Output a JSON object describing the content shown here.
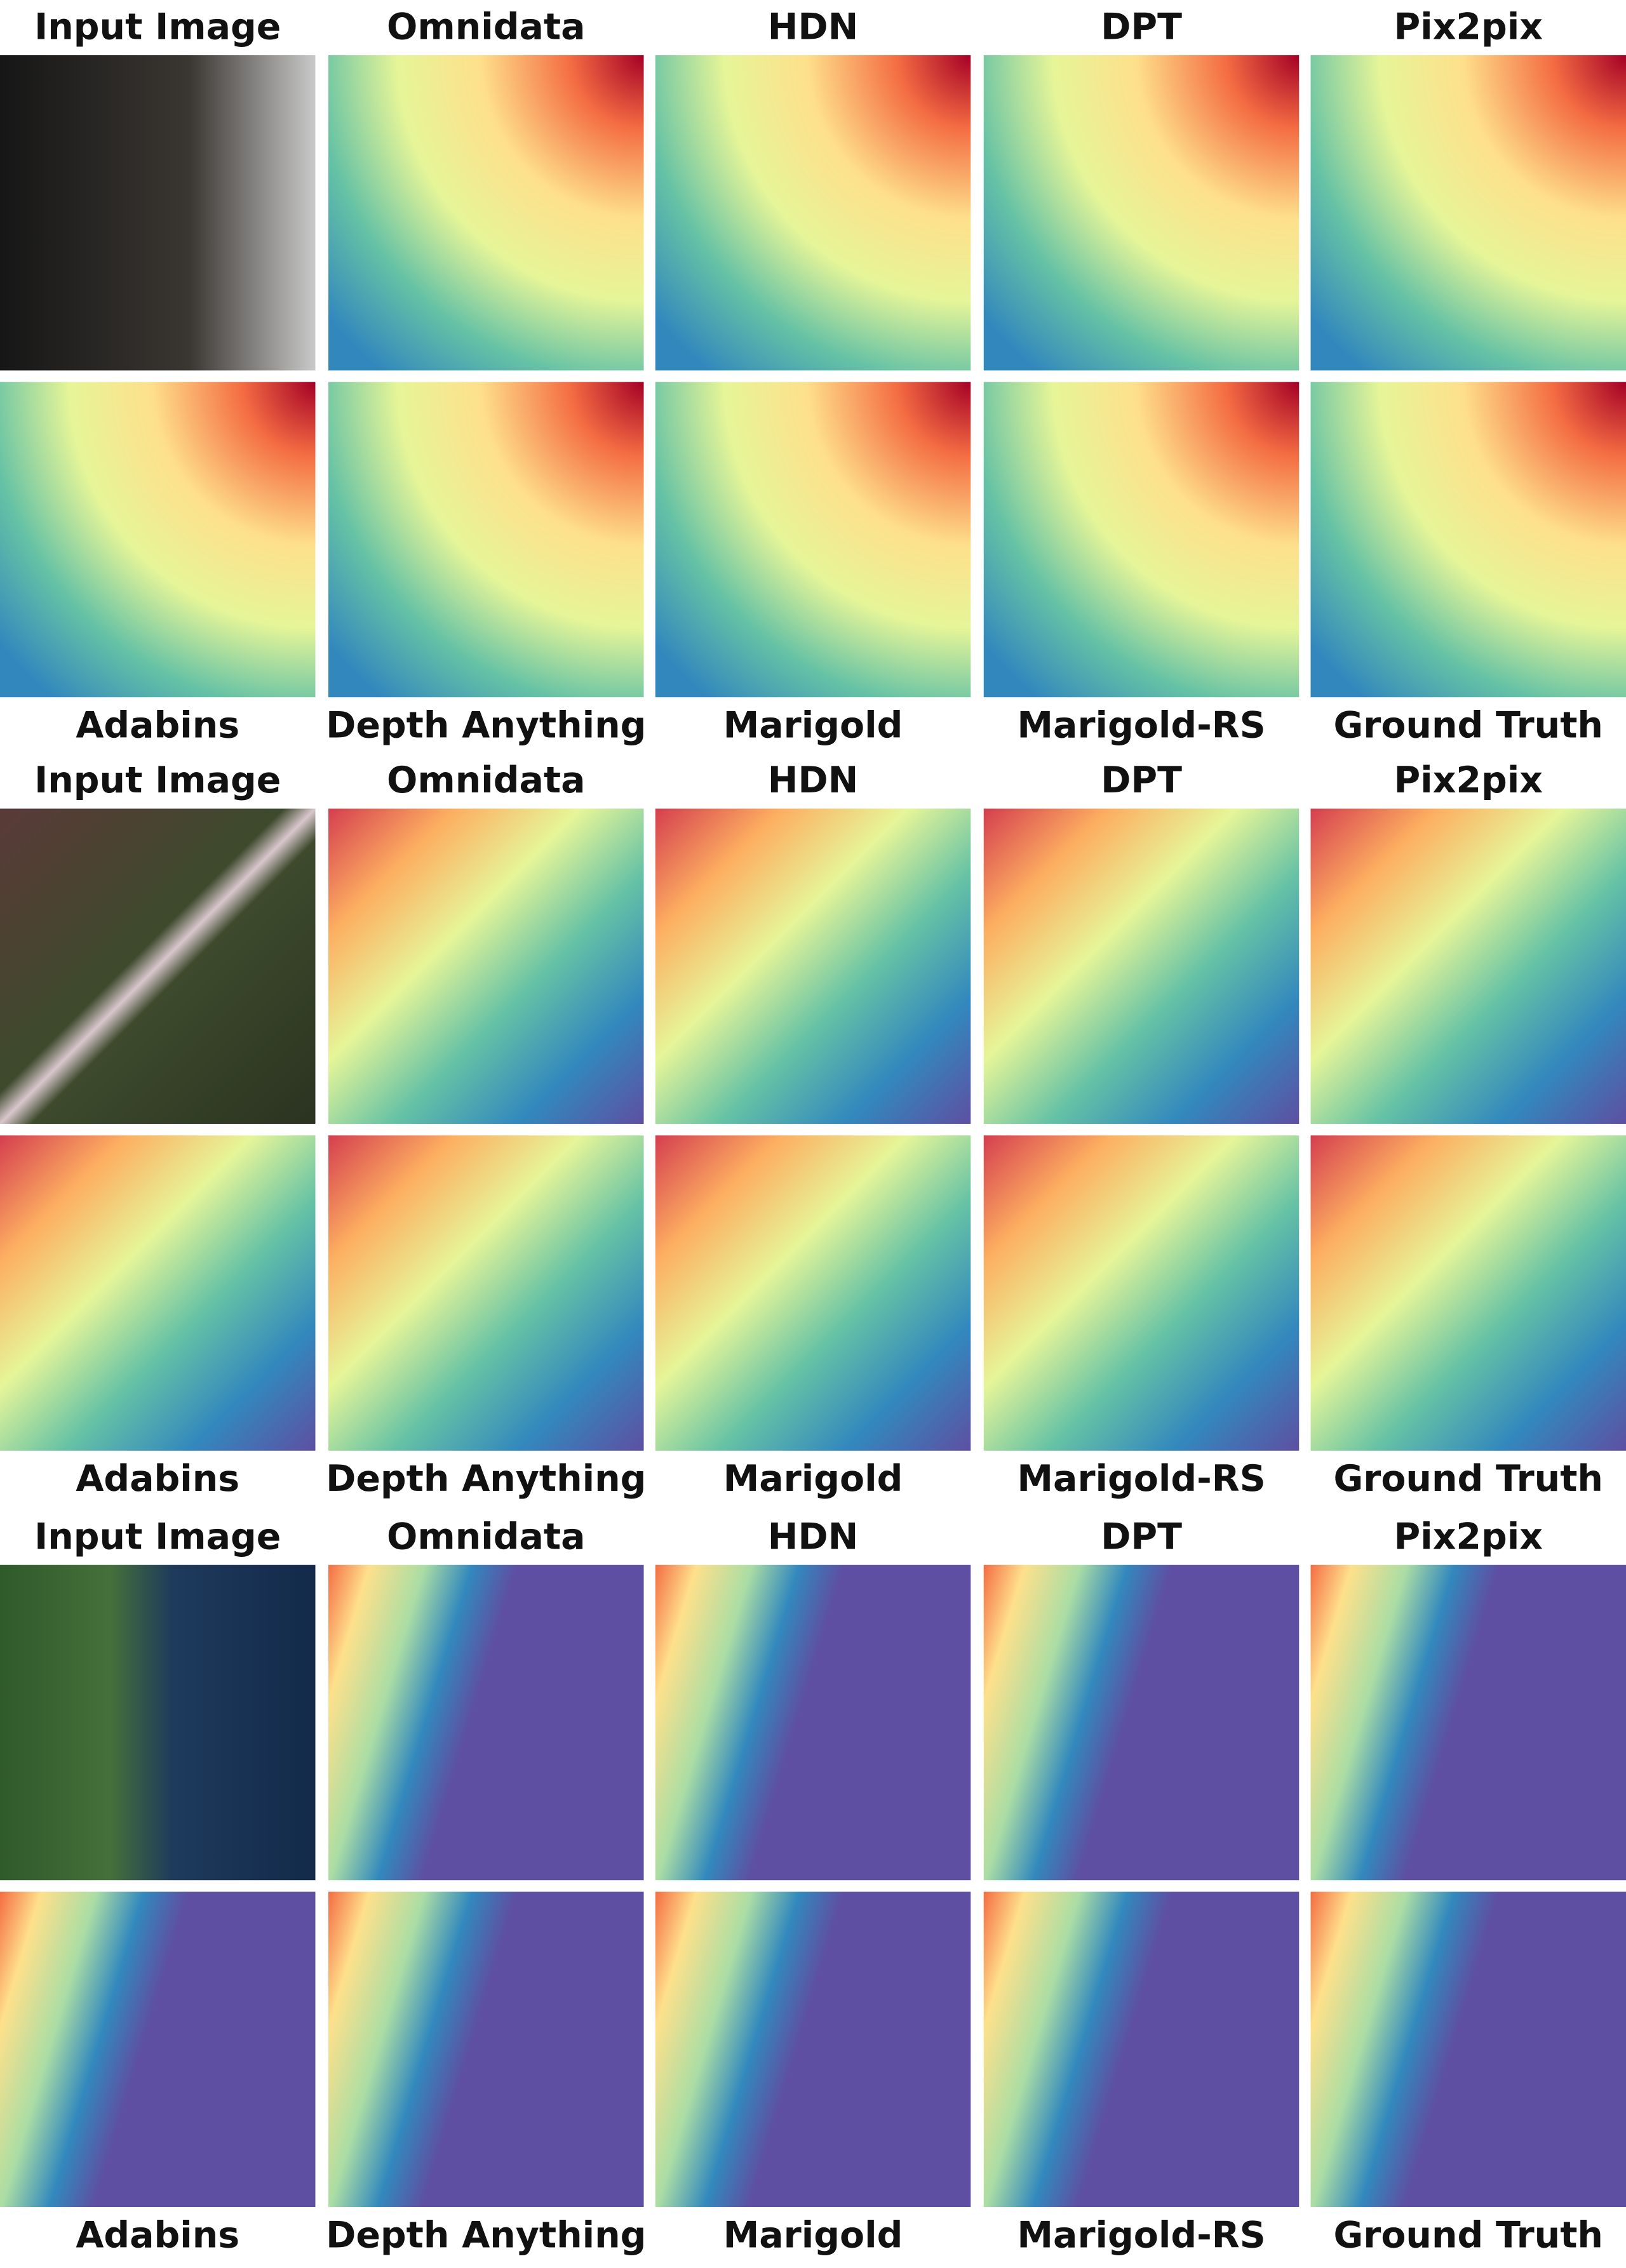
{
  "groups": [
    {
      "top_labels": [
        "Input Image",
        "Omnidata",
        "HDN",
        "DPT",
        "Pix2pix"
      ],
      "bottom_labels": [
        "Adabins",
        "Depth Anything",
        "Marigold",
        "Marigold-RS",
        "Ground Truth"
      ]
    },
    {
      "top_labels": [
        "Input Image",
        "Omnidata",
        "HDN",
        "DPT",
        "Pix2pix"
      ],
      "bottom_labels": [
        "Adabins",
        "Depth Anything",
        "Marigold",
        "Marigold-RS",
        "Ground Truth"
      ]
    },
    {
      "top_labels": [
        "Input Image",
        "Omnidata",
        "HDN",
        "DPT",
        "Pix2pix"
      ],
      "bottom_labels": [
        "Adabins",
        "Depth Anything",
        "Marigold",
        "Marigold-RS",
        "Ground Truth"
      ]
    }
  ]
}
